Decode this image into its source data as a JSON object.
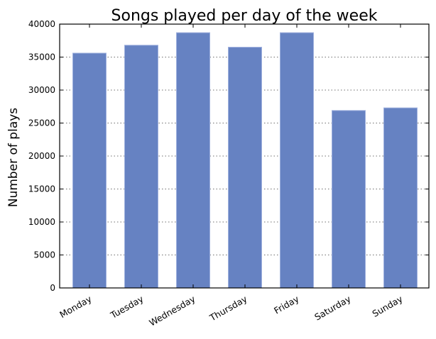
{
  "chart_data": {
    "type": "bar",
    "title": "Songs played per day of the week",
    "xlabel": "",
    "ylabel": "Number of plays",
    "categories": [
      "Monday",
      "Tuesday",
      "Wednesday",
      "Thursday",
      "Friday",
      "Saturday",
      "Sunday"
    ],
    "values": [
      35600,
      36800,
      38700,
      36500,
      38700,
      26900,
      27300
    ],
    "ylim": [
      0,
      40000
    ],
    "yticks": [
      0,
      5000,
      10000,
      15000,
      20000,
      25000,
      30000,
      35000,
      40000
    ],
    "grid": "horizontal dotted",
    "bar_color": "#6682c2",
    "bar_edge_color": "#9fb1de"
  }
}
